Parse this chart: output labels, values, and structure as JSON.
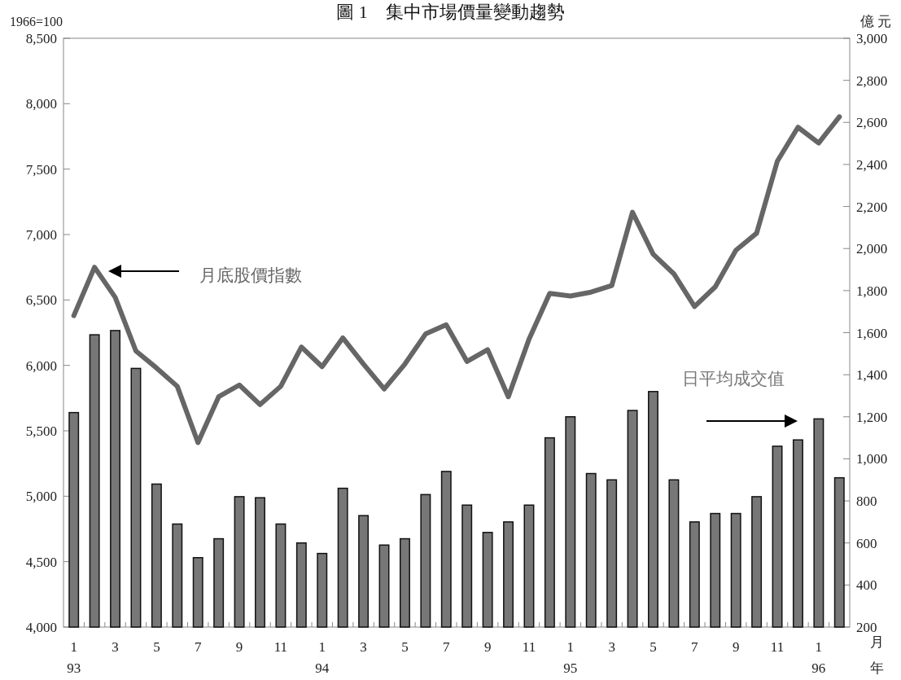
{
  "chart_data": {
    "type": "bar",
    "title": "圖 1　集中市場價量變動趨勢",
    "ylabel": "1966=100",
    "y2label": "億 元",
    "xlabel": "月",
    "annotations": [
      "年"
    ],
    "categories": [
      "1\n93",
      null,
      "3",
      null,
      "5",
      null,
      "7",
      null,
      "9",
      null,
      "11",
      null,
      "1\n94",
      null,
      "3",
      null,
      "5",
      null,
      "7",
      null,
      "9",
      null,
      "11",
      null,
      "1\n95",
      null,
      "3",
      null,
      "5",
      null,
      "7",
      null,
      "9",
      null,
      "11",
      null,
      "1\n96",
      null
    ],
    "series": [
      {
        "name": "日平均成交值",
        "axis": "y2",
        "color": "#777777",
        "values": [
          1220,
          1590,
          1610,
          1430,
          880,
          690,
          530,
          620,
          820,
          815,
          690,
          600,
          550,
          860,
          730,
          590,
          620,
          830,
          940,
          780,
          650,
          700,
          780,
          1100,
          1200,
          930,
          900,
          1230,
          1320,
          900,
          700,
          740,
          740,
          820,
          1060,
          1090,
          1190,
          910
        ]
      },
      {
        "name": "月底股價指數",
        "type": "line",
        "color": "#666666",
        "values": [
          6380,
          6750,
          6520,
          6110,
          5980,
          5840,
          5410,
          5760,
          5850,
          5700,
          5840,
          6140,
          5990,
          6210,
          6010,
          5820,
          6010,
          6240,
          6310,
          6030,
          6120,
          5760,
          6200,
          6550,
          6530,
          6560,
          6610,
          7170,
          6850,
          6700,
          6450,
          6600,
          6880,
          7010,
          7560,
          7820,
          7700,
          7900
        ]
      }
    ],
    "ylim": [
      4000,
      8500
    ],
    "yticks": [
      {
        "value": 4000,
        "label": "4,000"
      },
      {
        "value": 4500,
        "label": "4,500"
      },
      {
        "value": 5000,
        "label": "5,000"
      },
      {
        "value": 5500,
        "label": "5,500"
      },
      {
        "value": 6000,
        "label": "6,000"
      },
      {
        "value": 6500,
        "label": "6,500"
      },
      {
        "value": 7000,
        "label": "7,000"
      },
      {
        "value": 7500,
        "label": "7,500"
      },
      {
        "value": 8000,
        "label": "8,000"
      },
      {
        "value": 8500,
        "label": "8,500"
      }
    ],
    "y2lim": [
      200,
      3000
    ],
    "y2ticks": [
      200,
      400,
      600,
      800,
      {
        "value": 1000,
        "label": "1,000"
      },
      {
        "value": 1200,
        "label": "1,200"
      },
      {
        "value": 1400,
        "label": "1,400"
      },
      {
        "value": 1600,
        "label": "1,600"
      },
      {
        "value": 1800,
        "label": "1,800"
      },
      {
        "value": 2000,
        "label": "2,000"
      },
      {
        "value": 2200,
        "label": "2,200"
      },
      {
        "value": 2400,
        "label": "2,400"
      },
      {
        "value": 2600,
        "label": "2,600"
      },
      {
        "value": 2800,
        "label": "2,800"
      },
      {
        "value": 3000,
        "label": "3,000"
      }
    ],
    "grid": false
  }
}
